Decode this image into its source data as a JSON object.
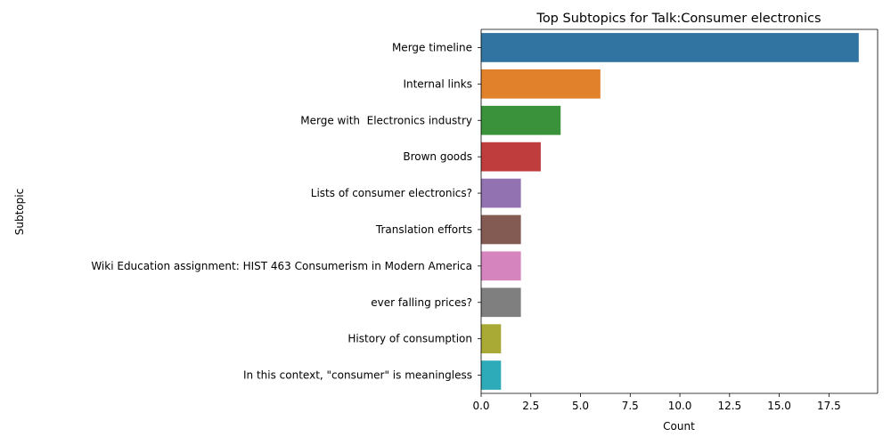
{
  "chart_data": {
    "type": "bar",
    "orientation": "horizontal",
    "title": "Top Subtopics for Talk:Consumer electronics",
    "xlabel": "Count",
    "ylabel": "Subtopic",
    "xlim": [
      0,
      20
    ],
    "xticks": [
      "0.0",
      "2.5",
      "5.0",
      "7.5",
      "10.0",
      "12.5",
      "15.0",
      "17.5"
    ],
    "xtick_values": [
      0,
      2.5,
      5,
      7.5,
      10,
      12.5,
      15,
      17.5
    ],
    "grid": false,
    "categories": [
      "Merge timeline",
      "Internal links",
      "Merge with  Electronics industry",
      "Brown goods",
      "Lists of consumer electronics?",
      "Translation efforts",
      "Wiki Education assignment: HIST 463 Consumerism in Modern America",
      "ever falling prices?",
      "History of consumption",
      "In this context, \"consumer\" is meaningless"
    ],
    "values": [
      19,
      6,
      4,
      3,
      2,
      2,
      2,
      2,
      1,
      1
    ],
    "colors": [
      "#3274a1",
      "#e1812c",
      "#3a923a",
      "#c03d3e",
      "#9372b2",
      "#845b53",
      "#d684bd",
      "#7f7f7f",
      "#a9aa35",
      "#2eabb8"
    ]
  }
}
